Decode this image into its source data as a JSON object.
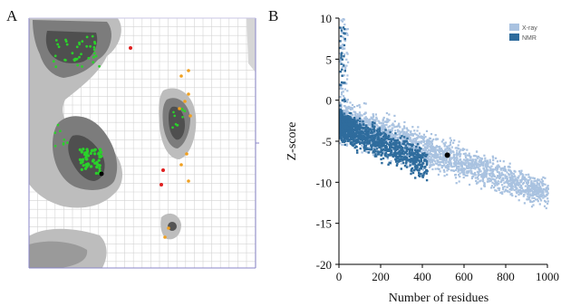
{
  "panels": {
    "a_label": "A",
    "b_label": "B"
  },
  "colors": {
    "xray": "#a9c2e0",
    "nmr": "#2f6c9d",
    "favored_dark": "#4d4d4d",
    "favored": "#7a7a7a",
    "allowed": "#b6b6b6",
    "glycine_points": "#2bd12b",
    "outlier_points": "#e02020",
    "other_points": "#f0a020",
    "grid": "#d4d4d4",
    "frame": "#8a86c8"
  },
  "chart_data": [
    {
      "type": "scatter",
      "panel": "A",
      "title": "",
      "xlabel": "",
      "ylabel": "",
      "grid": true,
      "regions": [
        "favored-core",
        "favored",
        "allowed"
      ],
      "points_description": "Ramachandran plot of phi/psi angles; green points clustered in the alpha-helix and beta-sheet regions, red outliers and orange points scattered"
    },
    {
      "type": "scatter",
      "panel": "B",
      "title": "",
      "xlabel": "Number of residues",
      "ylabel": "Z-score",
      "xlim": [
        0,
        1000
      ],
      "ylim": [
        -20,
        10
      ],
      "xticks": [
        0,
        200,
        400,
        600,
        800,
        1000
      ],
      "yticks": [
        10,
        5,
        0,
        -5,
        -10,
        -15,
        -20
      ],
      "legend": {
        "placement": "top-right",
        "entries": [
          "X-ray",
          "NMR"
        ]
      },
      "series": [
        {
          "name": "X-ray",
          "description": "dense light-blue band of PDB structures, from ~0 near 0 residues down to ~-13 near 1000 residues"
        },
        {
          "name": "NMR",
          "description": "dark-blue band concentrated below ~200 residues, Z-scores ~0 to -9"
        }
      ],
      "highlight_point": {
        "x": 520,
        "y": -6.7
      }
    }
  ]
}
